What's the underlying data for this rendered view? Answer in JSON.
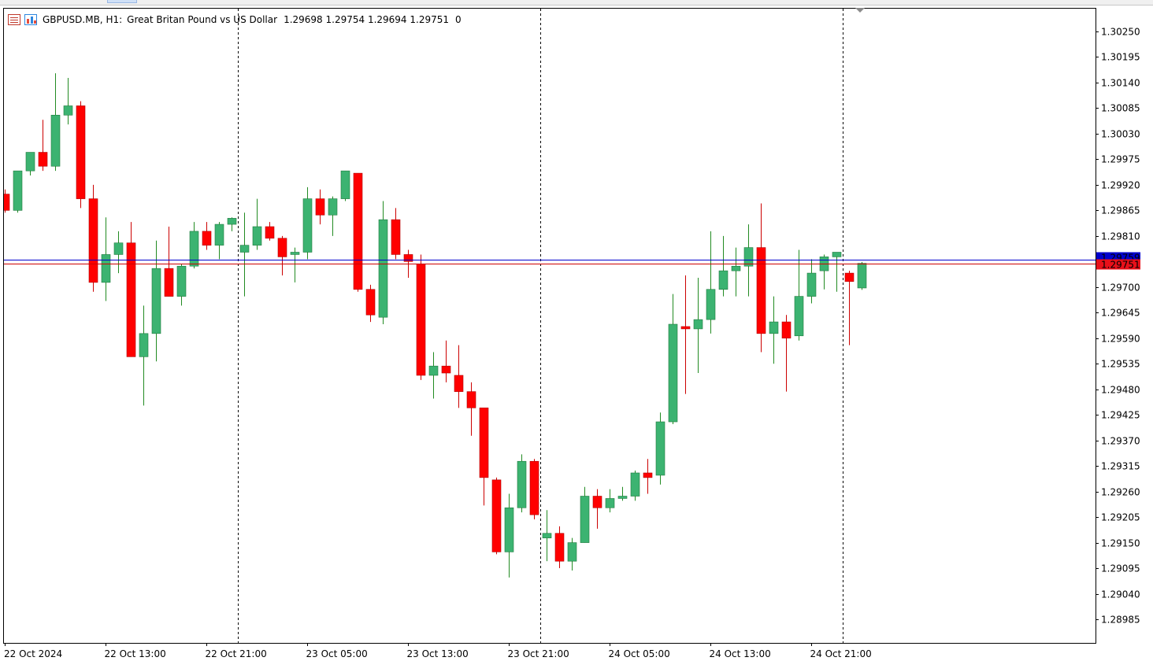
{
  "header": {
    "symbol": "GBPUSD.MB, H1:",
    "description": "Great Britan Pound vs US Dollar",
    "ohlc": "1.29698 1.29754 1.29694 1.29751",
    "volume": "0"
  },
  "price_tags": {
    "ask": "1.29759",
    "bid": "1.29751"
  },
  "colors": {
    "bull": "#3cb371",
    "bear": "#ff0000",
    "bull_wick": "#228b22",
    "bear_wick": "#cc0000",
    "ask_line": "#0000cd",
    "bid_line": "#cd0000",
    "frame": "#000000",
    "period_sep": "#000000"
  },
  "chart_data": {
    "type": "candlestick",
    "timeframe": "H1",
    "ylim": [
      1.2893,
      1.303
    ],
    "y_ticks": [
      "1.30250",
      "1.30195",
      "1.30140",
      "1.30085",
      "1.30030",
      "1.29975",
      "1.29920",
      "1.29865",
      "1.29810",
      "1.29755",
      "1.29700",
      "1.29645",
      "1.29590",
      "1.29535",
      "1.29480",
      "1.29425",
      "1.29370",
      "1.29315",
      "1.29260",
      "1.29205",
      "1.29150",
      "1.29095",
      "1.29040",
      "1.28985"
    ],
    "x_ticks": [
      {
        "label": "22 Oct 2024",
        "index": 0
      },
      {
        "label": "22 Oct 13:00",
        "index": 8
      },
      {
        "label": "22 Oct 21:00",
        "index": 16
      },
      {
        "label": "23 Oct 05:00",
        "index": 24
      },
      {
        "label": "23 Oct 13:00",
        "index": 32
      },
      {
        "label": "23 Oct 21:00",
        "index": 40
      },
      {
        "label": "24 Oct 05:00",
        "index": 48
      },
      {
        "label": "24 Oct 13:00",
        "index": 56
      },
      {
        "label": "24 Oct 21:00",
        "index": 64
      }
    ],
    "period_separators": [
      18.5,
      42.5,
      66.5
    ],
    "candles": [
      {
        "o": 1.299,
        "h": 1.2991,
        "l": 1.2986,
        "c": 1.29865
      },
      {
        "o": 1.29865,
        "h": 1.2995,
        "l": 1.2986,
        "c": 1.2995
      },
      {
        "o": 1.2995,
        "h": 1.2999,
        "l": 1.2994,
        "c": 1.2999
      },
      {
        "o": 1.2999,
        "h": 1.3006,
        "l": 1.2995,
        "c": 1.2996
      },
      {
        "o": 1.2996,
        "h": 1.3016,
        "l": 1.2995,
        "c": 1.3007
      },
      {
        "o": 1.3007,
        "h": 1.3015,
        "l": 1.3005,
        "c": 1.3009
      },
      {
        "o": 1.3009,
        "h": 1.301,
        "l": 1.2987,
        "c": 1.2989
      },
      {
        "o": 1.2989,
        "h": 1.2992,
        "l": 1.2969,
        "c": 1.2971
      },
      {
        "o": 1.2971,
        "h": 1.2985,
        "l": 1.2967,
        "c": 1.2977
      },
      {
        "o": 1.2977,
        "h": 1.2982,
        "l": 1.2973,
        "c": 1.29795
      },
      {
        "o": 1.29795,
        "h": 1.2984,
        "l": 1.2955,
        "c": 1.2955
      },
      {
        "o": 1.2955,
        "h": 1.2966,
        "l": 1.29445,
        "c": 1.296
      },
      {
        "o": 1.296,
        "h": 1.298,
        "l": 1.2954,
        "c": 1.2974
      },
      {
        "o": 1.2974,
        "h": 1.2983,
        "l": 1.2968,
        "c": 1.2968
      },
      {
        "o": 1.2968,
        "h": 1.2975,
        "l": 1.2966,
        "c": 1.29745
      },
      {
        "o": 1.29745,
        "h": 1.2984,
        "l": 1.2974,
        "c": 1.2982
      },
      {
        "o": 1.2982,
        "h": 1.2984,
        "l": 1.2978,
        "c": 1.2979
      },
      {
        "o": 1.2979,
        "h": 1.2984,
        "l": 1.2976,
        "c": 1.29835
      },
      {
        "o": 1.29835,
        "h": 1.2985,
        "l": 1.2982,
        "c": 1.29848
      },
      {
        "o": 1.29775,
        "h": 1.2986,
        "l": 1.2968,
        "c": 1.2979
      },
      {
        "o": 1.2979,
        "h": 1.2989,
        "l": 1.2978,
        "c": 1.2983
      },
      {
        "o": 1.2983,
        "h": 1.2984,
        "l": 1.298,
        "c": 1.29805
      },
      {
        "o": 1.29805,
        "h": 1.2981,
        "l": 1.29725,
        "c": 1.29765
      },
      {
        "o": 1.2977,
        "h": 1.29785,
        "l": 1.2971,
        "c": 1.29775
      },
      {
        "o": 1.29775,
        "h": 1.29915,
        "l": 1.2976,
        "c": 1.2989
      },
      {
        "o": 1.2989,
        "h": 1.2991,
        "l": 1.29835,
        "c": 1.29855
      },
      {
        "o": 1.29855,
        "h": 1.29895,
        "l": 1.2981,
        "c": 1.2989
      },
      {
        "o": 1.2989,
        "h": 1.2995,
        "l": 1.29885,
        "c": 1.2995
      },
      {
        "o": 1.29945,
        "h": 1.29945,
        "l": 1.2969,
        "c": 1.29695
      },
      {
        "o": 1.29695,
        "h": 1.29705,
        "l": 1.29625,
        "c": 1.2964
      },
      {
        "o": 1.29635,
        "h": 1.29885,
        "l": 1.2962,
        "c": 1.29845
      },
      {
        "o": 1.29845,
        "h": 1.2987,
        "l": 1.2976,
        "c": 1.2977
      },
      {
        "o": 1.2977,
        "h": 1.2978,
        "l": 1.2972,
        "c": 1.29755
      },
      {
        "o": 1.2975,
        "h": 1.2977,
        "l": 1.295,
        "c": 1.2951
      },
      {
        "o": 1.2951,
        "h": 1.2956,
        "l": 1.2946,
        "c": 1.2953
      },
      {
        "o": 1.2953,
        "h": 1.29585,
        "l": 1.29495,
        "c": 1.29515
      },
      {
        "o": 1.2951,
        "h": 1.29575,
        "l": 1.2944,
        "c": 1.29475
      },
      {
        "o": 1.29475,
        "h": 1.29495,
        "l": 1.2938,
        "c": 1.2944
      },
      {
        "o": 1.2944,
        "h": 1.2944,
        "l": 1.2923,
        "c": 1.2929
      },
      {
        "o": 1.29285,
        "h": 1.2929,
        "l": 1.29125,
        "c": 1.2913
      },
      {
        "o": 1.2913,
        "h": 1.29255,
        "l": 1.29075,
        "c": 1.29225
      },
      {
        "o": 1.29225,
        "h": 1.2934,
        "l": 1.29215,
        "c": 1.29325
      },
      {
        "o": 1.29325,
        "h": 1.2933,
        "l": 1.292,
        "c": 1.2921
      },
      {
        "o": 1.2916,
        "h": 1.2922,
        "l": 1.2911,
        "c": 1.2917
      },
      {
        "o": 1.2917,
        "h": 1.29185,
        "l": 1.29095,
        "c": 1.2911
      },
      {
        "o": 1.2911,
        "h": 1.2916,
        "l": 1.2909,
        "c": 1.2915
      },
      {
        "o": 1.2915,
        "h": 1.2927,
        "l": 1.2915,
        "c": 1.2925
      },
      {
        "o": 1.2925,
        "h": 1.29265,
        "l": 1.2918,
        "c": 1.29225
      },
      {
        "o": 1.29225,
        "h": 1.29265,
        "l": 1.29215,
        "c": 1.29245
      },
      {
        "o": 1.29245,
        "h": 1.2927,
        "l": 1.2924,
        "c": 1.2925
      },
      {
        "o": 1.2925,
        "h": 1.29305,
        "l": 1.2924,
        "c": 1.293
      },
      {
        "o": 1.293,
        "h": 1.2933,
        "l": 1.29255,
        "c": 1.2929
      },
      {
        "o": 1.29295,
        "h": 1.2943,
        "l": 1.29275,
        "c": 1.2941
      },
      {
        "o": 1.2941,
        "h": 1.29685,
        "l": 1.29405,
        "c": 1.2962
      },
      {
        "o": 1.29615,
        "h": 1.29725,
        "l": 1.2947,
        "c": 1.2961
      },
      {
        "o": 1.2961,
        "h": 1.2972,
        "l": 1.29515,
        "c": 1.2963
      },
      {
        "o": 1.2963,
        "h": 1.2982,
        "l": 1.296,
        "c": 1.29695
      },
      {
        "o": 1.29695,
        "h": 1.2981,
        "l": 1.2968,
        "c": 1.29735
      },
      {
        "o": 1.29735,
        "h": 1.29785,
        "l": 1.2968,
        "c": 1.29745
      },
      {
        "o": 1.29745,
        "h": 1.29835,
        "l": 1.2968,
        "c": 1.29785
      },
      {
        "o": 1.29785,
        "h": 1.2988,
        "l": 1.2956,
        "c": 1.296
      },
      {
        "o": 1.296,
        "h": 1.2968,
        "l": 1.29535,
        "c": 1.29625
      },
      {
        "o": 1.29625,
        "h": 1.2964,
        "l": 1.29475,
        "c": 1.2959
      },
      {
        "o": 1.29595,
        "h": 1.2978,
        "l": 1.29585,
        "c": 1.2968
      },
      {
        "o": 1.2968,
        "h": 1.2976,
        "l": 1.29665,
        "c": 1.2973
      },
      {
        "o": 1.29735,
        "h": 1.2977,
        "l": 1.29695,
        "c": 1.29765
      },
      {
        "o": 1.29765,
        "h": 1.29775,
        "l": 1.2969,
        "c": 1.29775
      },
      {
        "o": 1.2973,
        "h": 1.29735,
        "l": 1.29575,
        "c": 1.29712
      },
      {
        "o": 1.29698,
        "h": 1.29754,
        "l": 1.29694,
        "c": 1.29751
      }
    ]
  }
}
